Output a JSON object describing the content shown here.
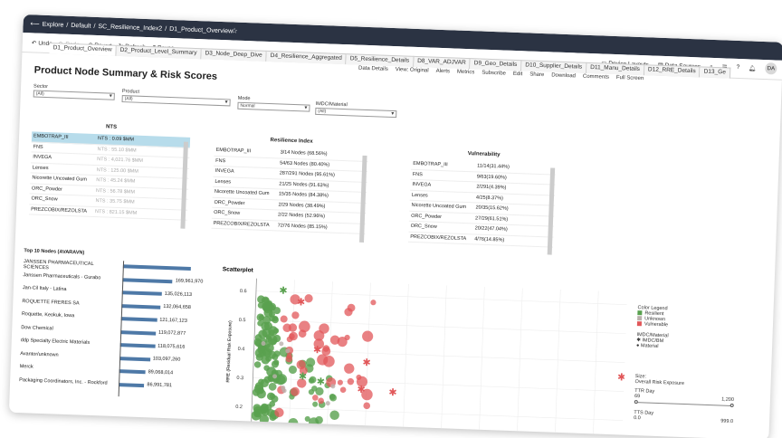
{
  "header": {
    "breadcrumbs": [
      "Explore",
      "Default",
      "SC_Resilience_Index2",
      "D1_Product_Overview"
    ],
    "nav": {
      "device_layouts": "Device Layouts",
      "data_sources": "Data Sources",
      "avatar": "DA"
    }
  },
  "toolbar": {
    "undo": "Undo",
    "redo": "Redo",
    "revert": "Revert",
    "refresh": "Refresh",
    "pause": "Pause",
    "data_details": "Data Details",
    "view_original": "View: Original",
    "alerts": "Alerts",
    "metrics": "Metrics",
    "subscribe": "Subscribe",
    "edit": "Edit",
    "share": "Share",
    "download": "Download",
    "comments": "Comments",
    "full_screen": "Full Screen"
  },
  "tabs": [
    "D1_Product_Overview",
    "D2_Product_Level_Summary",
    "D3_Node_Deep_Dive",
    "D4_Resilience_Aggregated",
    "D5_Resilience_Details",
    "D8_VAR_ADJVAR",
    "D9_Geo_Details",
    "D10_Supplier_Details",
    "D11_Manu_Details",
    "D12_RRE_Details",
    "D13_Ge"
  ],
  "page_title": "Product Node Summary & Risk Scores",
  "filters": [
    {
      "label": "Sector",
      "value": "(All)"
    },
    {
      "label": "Product",
      "value": "(All)"
    },
    {
      "label": "Mode",
      "value": "Normal"
    },
    {
      "label": "IMDC/Material",
      "value": "(All)"
    }
  ],
  "nts": {
    "title": "NTS",
    "rows": [
      {
        "name": "EMBOTRAP_III",
        "value": "NTS :  0.09 $MM"
      },
      {
        "name": "FNS",
        "value": "NTS :  55.10 $MM"
      },
      {
        "name": "INVEGA",
        "value": "NTS :  4,021.76 $MM"
      },
      {
        "name": "Lenses",
        "value": "NTS :  125.00 $MM"
      },
      {
        "name": "Nicorette Uncoated Gum",
        "value": "NTS :  45.24 $MM"
      },
      {
        "name": "ORC_Powder",
        "value": "NTS :  56.78 $MM"
      },
      {
        "name": "ORC_Snow",
        "value": "NTS :  35.75 $MM"
      },
      {
        "name": "PREZCOBIX/REZOLSTA",
        "value": "NTS :  821.15 $MM"
      }
    ]
  },
  "resilience": {
    "title": "Resilience Index",
    "rows": [
      {
        "name": "EMBOTRAP_III",
        "value": "3/14 Nodes (68.56%)"
      },
      {
        "name": "FNS",
        "value": "54/63 Nodes (80.40%)"
      },
      {
        "name": "INVEGA",
        "value": "287/291 Nodes (95.61%)"
      },
      {
        "name": "Lenses",
        "value": "21/25 Nodes (91.63%)"
      },
      {
        "name": "Nicorette Uncoated Gum",
        "value": "15/35 Nodes (84.38%)"
      },
      {
        "name": "ORC_Powder",
        "value": "2/29 Nodes (38.49%)"
      },
      {
        "name": "ORC_Snow",
        "value": "2/22 Nodes (52.96%)"
      },
      {
        "name": "PREZCOBIX/REZOLSTA",
        "value": "72/76 Nodes (85.15%)"
      }
    ]
  },
  "vulnerability": {
    "title": "Vulnerability",
    "rows": [
      {
        "name": "EMBOTRAP_III",
        "value": "11/14(31.44%)"
      },
      {
        "name": "FNS",
        "value": "9/63(19.60%)"
      },
      {
        "name": "INVEGA",
        "value": "2/291(4.39%)"
      },
      {
        "name": "Lenses",
        "value": "4/25(8.37%)"
      },
      {
        "name": "Nicorette Uncoated Gum",
        "value": "20/35(15.62%)"
      },
      {
        "name": "ORC_Powder",
        "value": "27/29(61.51%)"
      },
      {
        "name": "ORC_Snow",
        "value": "20/22(47.04%)"
      },
      {
        "name": "PREZCOBIX/REZOLSTA",
        "value": "4/76(14.85%)"
      }
    ]
  },
  "top10": {
    "title": "Top 10 Nodes (AVARAVN)",
    "items": [
      {
        "name": "JANSSEN PHARMACEUTICAL SCIENCES",
        "label": "",
        "value": 230
      },
      {
        "name": "Janssen Pharmaceuticals - Gurabo",
        "label": "169,961,970",
        "value": 169.96
      },
      {
        "name": "Jan-Cil Italy - Latina",
        "label": "135,026,113",
        "value": 135.03
      },
      {
        "name": "ROQUETTE FRERES SA",
        "label": "132,064,658",
        "value": 132.06
      },
      {
        "name": "Roquette, Keokuk, Iowa",
        "label": "121,167,123",
        "value": 121.17
      },
      {
        "name": "Dow Chemical",
        "label": "119,072,877",
        "value": 119.07
      },
      {
        "name": "ddp Specialty Electric Materials",
        "label": "118,075,616",
        "value": 118.08
      },
      {
        "name": "Avantor/unknown",
        "label": "103,097,260",
        "value": 103.1
      },
      {
        "name": "Merck",
        "label": "89,068,014",
        "value": 89.07
      },
      {
        "name": "Packaging Coordinators, Inc. - Rockford",
        "label": "86,991,781",
        "value": 86.99
      }
    ]
  },
  "scatter": {
    "title": "Scatterplot",
    "ylabel": "RRE (Residual Risk Exposure)",
    "yticks": [
      "0.6",
      "0.5",
      "0.4",
      "0.3",
      "0.2"
    ]
  },
  "legend": {
    "color_title": "Color Legend",
    "colors": [
      {
        "label": "Resilient",
        "color": "#59a14f"
      },
      {
        "label": "Unknown",
        "color": "#bab0ac"
      },
      {
        "label": "Vulnerable",
        "color": "#e15759"
      }
    ],
    "shape_title": "IMDC/Material",
    "shapes": [
      {
        "label": "IMDC/BM",
        "glyph": "✱"
      },
      {
        "label": "Material",
        "glyph": "●"
      }
    ],
    "size_title": "Size:",
    "size_sub": "Overall Risk Exposure",
    "ttr_title": "TTR Day",
    "ttr_min": "69",
    "ttr_max": "1,200",
    "tts_title": "TTS Day",
    "tts_min": "0.0",
    "tts_max": "999.0"
  },
  "chart_data": {
    "type": "bar",
    "categories": [
      "JANSSEN PHARMACEUTICAL SCIENCES",
      "Janssen Pharmaceuticals - Gurabo",
      "Jan-Cil Italy - Latina",
      "ROQUETTE FRERES SA",
      "Roquette, Keokuk, Iowa",
      "Dow Chemical",
      "ddp Specialty Electric Materials",
      "Avantor/unknown",
      "Merck",
      "Packaging Coordinators, Inc. - Rockford"
    ],
    "values": [
      230,
      169.96,
      135.03,
      132.06,
      121.17,
      119.07,
      118.08,
      103.1,
      89.07,
      86.99
    ]
  }
}
